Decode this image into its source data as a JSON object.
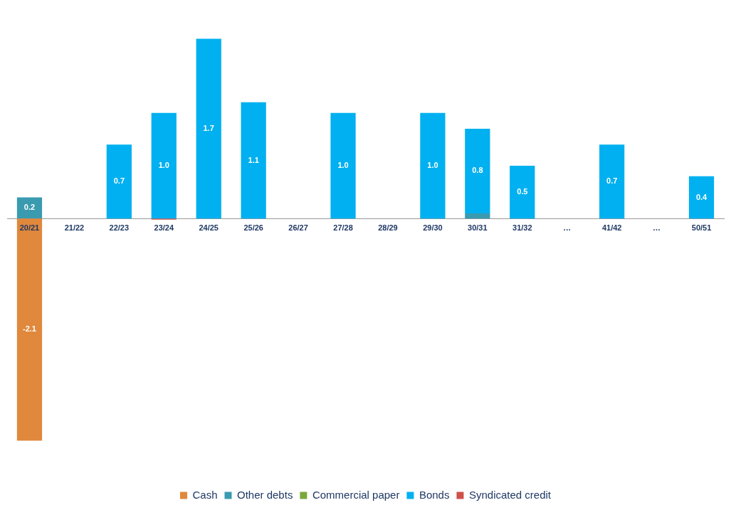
{
  "chart_data": {
    "type": "bar",
    "stacked": true,
    "legend": "bottom",
    "grid": false,
    "categories": [
      "20/21",
      "21/22",
      "22/23",
      "23/24",
      "24/25",
      "25/26",
      "26/27",
      "27/28",
      "28/29",
      "29/30",
      "30/31",
      "31/32",
      "…",
      "41/42",
      "…",
      "50/51"
    ],
    "series": [
      {
        "name": "Cash",
        "color": "#e0883c",
        "values": [
          -2.1,
          null,
          null,
          null,
          null,
          null,
          null,
          null,
          null,
          null,
          null,
          null,
          null,
          null,
          null,
          null
        ],
        "value_labels": [
          "-2.1",
          null,
          null,
          null,
          null,
          null,
          null,
          null,
          null,
          null,
          null,
          null,
          null,
          null,
          null,
          null
        ]
      },
      {
        "name": "Other debts",
        "color": "#3a9ab0",
        "values": [
          0.2,
          null,
          null,
          null,
          null,
          null,
          null,
          null,
          null,
          null,
          0.05,
          null,
          null,
          null,
          null,
          null
        ],
        "value_labels": [
          "0.2",
          null,
          null,
          null,
          null,
          null,
          null,
          null,
          null,
          null,
          null,
          null,
          null,
          null,
          null,
          null
        ]
      },
      {
        "name": "Commercial paper",
        "color": "#7aa83c",
        "values": [
          null,
          null,
          null,
          null,
          null,
          null,
          null,
          null,
          null,
          null,
          null,
          null,
          null,
          null,
          null,
          null
        ]
      },
      {
        "name": "Bonds",
        "color": "#00b0f0",
        "values": [
          null,
          null,
          0.7,
          1.0,
          1.7,
          1.1,
          null,
          1.0,
          null,
          1.0,
          0.8,
          0.5,
          null,
          0.7,
          null,
          0.4
        ],
        "value_labels": [
          null,
          null,
          "0.7",
          "1.0",
          "1.7",
          "1.1",
          null,
          "1.0",
          null,
          "1.0",
          "0.8",
          "0.5",
          null,
          "0.7",
          null,
          "0.4"
        ]
      },
      {
        "name": "Syndicated credit",
        "color": "#d0504a",
        "values": [
          null,
          null,
          null,
          -0.01,
          null,
          null,
          null,
          null,
          null,
          null,
          null,
          null,
          null,
          null,
          null,
          null
        ]
      }
    ]
  }
}
